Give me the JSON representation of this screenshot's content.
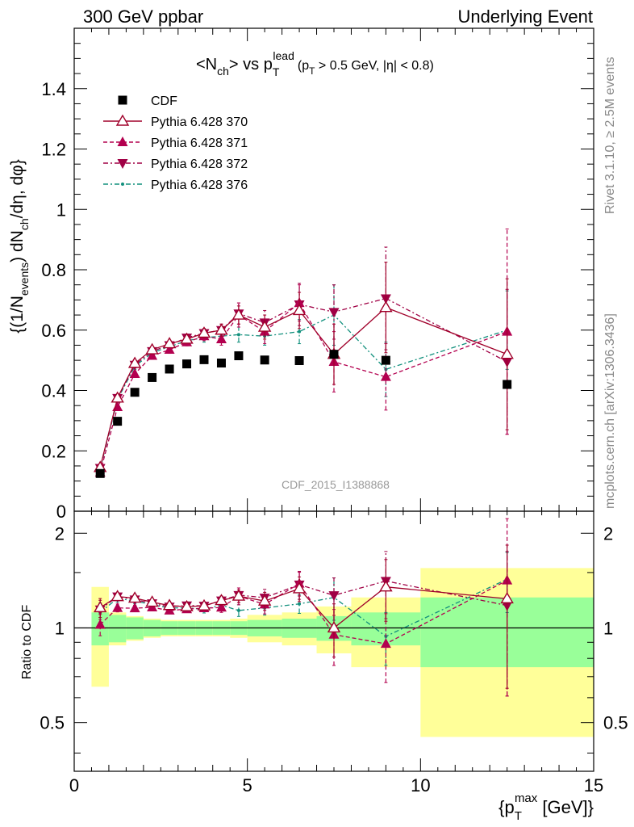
{
  "header": {
    "left": "300 GeV ppbar",
    "right": "Underlying Event"
  },
  "side_labels": {
    "rivet": "Rivet 3.1.10, ≥ 2.5M events",
    "mcplots": "mcplots.cern.ch [arXiv:1306.3436]"
  },
  "watermark": "CDF_2015_I1388868",
  "title": {
    "prefix": "<N",
    "sub_ch": "ch",
    "mid": "> vs p",
    "sub_T": "T",
    "sup_lead": "lead",
    "cuts": "(p",
    "cuts_sub": "T",
    "cuts_rest": " > 0.5 GeV, |η| < 0.8)"
  },
  "ylabel_main": {
    "a": "{(1/N",
    "a_sub": "events",
    "b": ") dN",
    "b_sub": "ch",
    "c": "/dη, dφ}"
  },
  "ylabel_ratio": "Ratio to CDF",
  "xlabel": {
    "a": "{p",
    "sub": "T",
    "sup": "max",
    "b": " [GeV]}"
  },
  "colors": {
    "cdf": "#000000",
    "p370": "#a0002a",
    "p371": "#b3004f",
    "p372": "#a00045",
    "p376": "#12907d",
    "band_inner": "#99ff99",
    "band_outer": "#ffff99"
  },
  "chart_data": {
    "type": "scatter",
    "x_range": [
      0,
      15
    ],
    "y_range_main": [
      0,
      1.6
    ],
    "y_range_ratio": [
      0.35,
      2.35
    ],
    "ratio_log_scale": true,
    "x_ticks": [
      "0",
      "5",
      "10",
      "15"
    ],
    "y_ticks_main": [
      "0",
      "0.2",
      "0.4",
      "0.6",
      "0.8",
      "1",
      "1.2",
      "1.4"
    ],
    "y_ticks_ratio": [
      "0.5",
      "1",
      "2"
    ],
    "legend_position": "top-left",
    "bins": [
      [
        0.5,
        1.0
      ],
      [
        1.0,
        1.5
      ],
      [
        1.5,
        2.0
      ],
      [
        2.0,
        2.5
      ],
      [
        2.5,
        3.0
      ],
      [
        3.0,
        3.5
      ],
      [
        3.5,
        4.0
      ],
      [
        4.0,
        4.5
      ],
      [
        4.5,
        5.0
      ],
      [
        5.0,
        6.0
      ],
      [
        6.0,
        7.0
      ],
      [
        7.0,
        8.0
      ],
      [
        8.0,
        10.0
      ],
      [
        10.0,
        15.0
      ]
    ],
    "x": [
      0.75,
      1.25,
      1.75,
      2.25,
      2.75,
      3.25,
      3.75,
      4.25,
      4.75,
      5.5,
      6.5,
      7.5,
      9.0,
      12.5
    ],
    "series": [
      {
        "name": "CDF",
        "marker": "square",
        "y": [
          0.125,
          0.298,
          0.394,
          0.443,
          0.471,
          0.488,
          0.502,
          0.491,
          0.515,
          0.501,
          0.499,
          0.52,
          0.5,
          0.42
        ],
        "err": [
          0.005,
          0.005,
          0.005,
          0.005,
          0.005,
          0.005,
          0.005,
          0.005,
          0.005,
          0.01,
          0.01,
          0.01,
          0.01,
          0.01
        ],
        "band_inner": [
          0.12,
          0.1,
          0.08,
          0.06,
          0.05,
          0.05,
          0.05,
          0.05,
          0.05,
          0.06,
          0.07,
          0.09,
          0.12,
          0.25
        ],
        "band_outer": [
          0.35,
          0.12,
          0.09,
          0.07,
          0.06,
          0.06,
          0.06,
          0.06,
          0.07,
          0.1,
          0.12,
          0.17,
          0.25,
          0.55
        ]
      },
      {
        "name": "Pythia 6.428 370",
        "marker": "triangle-up-open",
        "style": "solid",
        "y": [
          0.145,
          0.375,
          0.49,
          0.535,
          0.555,
          0.57,
          0.59,
          0.6,
          0.65,
          0.61,
          0.665,
          0.52,
          0.675,
          0.52
        ],
        "err": [
          0.01,
          0.01,
          0.01,
          0.01,
          0.012,
          0.012,
          0.015,
          0.02,
          0.03,
          0.04,
          0.06,
          0.1,
          0.15,
          0.25
        ]
      },
      {
        "name": "Pythia 6.428 371",
        "marker": "triangle-up",
        "style": "dashed",
        "y": [
          0.128,
          0.345,
          0.455,
          0.515,
          0.535,
          0.56,
          0.58,
          0.57,
          0.65,
          0.595,
          0.69,
          0.495,
          0.445,
          0.595
        ],
        "err": [
          0.01,
          0.01,
          0.01,
          0.01,
          0.012,
          0.012,
          0.015,
          0.02,
          0.04,
          0.04,
          0.06,
          0.1,
          0.11,
          0.34
        ]
      },
      {
        "name": "Pythia 6.428 372",
        "marker": "triangle-down",
        "style": "dash-dot",
        "y": [
          0.143,
          0.375,
          0.485,
          0.53,
          0.55,
          0.575,
          0.59,
          0.6,
          0.655,
          0.625,
          0.685,
          0.66,
          0.705,
          0.495
        ],
        "err": [
          0.01,
          0.01,
          0.01,
          0.01,
          0.012,
          0.012,
          0.015,
          0.02,
          0.035,
          0.04,
          0.07,
          0.09,
          0.17,
          0.24
        ]
      },
      {
        "name": "Pythia 6.428 376",
        "marker": "dot",
        "style": "dash-dot",
        "y": [
          0.14,
          0.37,
          0.48,
          0.525,
          0.545,
          0.565,
          0.575,
          0.58,
          0.585,
          0.58,
          0.595,
          0.65,
          0.47,
          0.6
        ],
        "err": [
          0.01,
          0.01,
          0.01,
          0.01,
          0.012,
          0.012,
          0.015,
          0.02,
          0.025,
          0.03,
          0.04,
          0.1,
          0.09,
          0.13
        ]
      }
    ]
  }
}
